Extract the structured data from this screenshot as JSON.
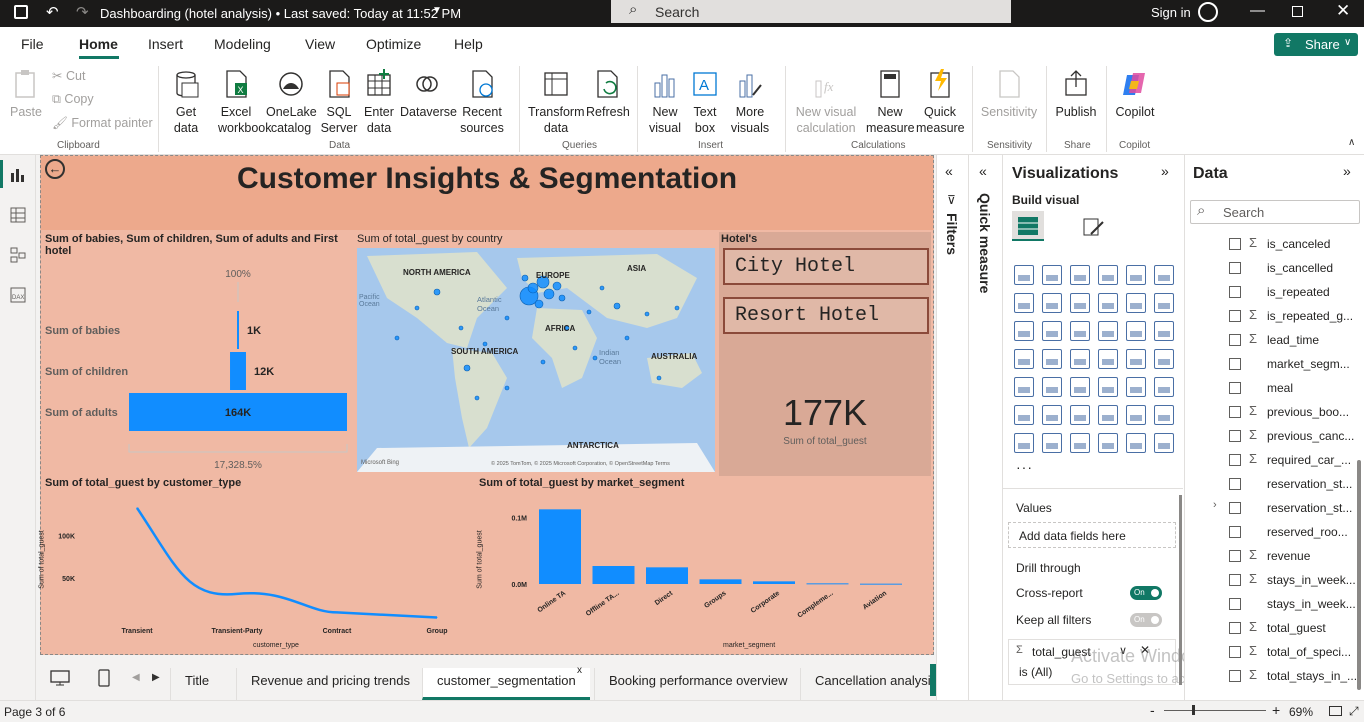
{
  "titlebar": {
    "title": "Dashboarding (hotel analysis) • Last saved: Today at 11:52 PM",
    "search_placeholder": "Search",
    "signin": "Sign in"
  },
  "menu": [
    "File",
    "Home",
    "Insert",
    "Modeling",
    "View",
    "Optimize",
    "Help"
  ],
  "share": "Share",
  "ribbon": {
    "clipboard": {
      "paste": "Paste",
      "cut": "Cut",
      "copy": "Copy",
      "format_painter": "Format painter",
      "group": "Clipboard"
    },
    "data": {
      "get_data": "Get data",
      "excel": "Excel workbook",
      "onelake": "OneLake catalog",
      "sql": "SQL Server",
      "enter": "Enter data",
      "dataverse": "Dataverse",
      "recent": "Recent sources",
      "group": "Data"
    },
    "queries": {
      "transform": "Transform data",
      "refresh": "Refresh",
      "group": "Queries"
    },
    "insert": {
      "new_visual": "New visual",
      "text_box": "Text box",
      "more_visuals": "More visuals",
      "group": "Insert"
    },
    "calculations": {
      "new_visual_calc": "New visual calculation",
      "new_measure": "New measure",
      "quick_measure": "Quick measure",
      "group": "Calculations"
    },
    "sensitivity": {
      "label": "Sensitivity",
      "group": "Sensitivity"
    },
    "share": {
      "publish": "Publish",
      "group": "Share"
    },
    "copilot": {
      "label": "Copilot",
      "group": "Copilot"
    }
  },
  "report": {
    "title": "Customer Insights & Segmentation",
    "funnel": {
      "title": "Sum of babies, Sum of children, Sum of adults and First hotel",
      "top_pct": "100%",
      "bottom_pct": "17,328.5%"
    },
    "map": {
      "title": "Sum of total_guest by country",
      "labels": [
        "NORTH AMERICA",
        "EUROPE",
        "ASIA",
        "Pacific Ocean",
        "Atlantic Ocean",
        "AFRICA",
        "SOUTH AMERICA",
        "Indian Ocean",
        "AUSTRALIA",
        "ANTARCTICA"
      ],
      "bing": "Microsoft Bing",
      "copyright": "© 2025 TomTom, © 2025 Microsoft Corporation, © OpenStreetMap  Terms"
    },
    "slicer": {
      "title": "Hotel's",
      "items": [
        "City Hotel",
        "Resort Hotel"
      ]
    },
    "card": {
      "value": "177K",
      "label": "Sum of total_guest"
    },
    "line": {
      "title": "Sum of total_guest by customer_type",
      "xlabel": "customer_type",
      "ylabel": "Sum of total_guest"
    },
    "bar": {
      "title": "Sum of total_guest by market_segment",
      "xlabel": "market_segment",
      "ylabel": "Sum of total_guest"
    }
  },
  "chart_data": [
    {
      "type": "bar",
      "orientation": "horizontal-funnel",
      "title": "Sum of babies, Sum of children, Sum of adults and First hotel",
      "categories": [
        "Sum of babies",
        "Sum of children",
        "Sum of adults"
      ],
      "values": [
        1000,
        12000,
        164000
      ],
      "labels": [
        "1K",
        "12K",
        "164K"
      ]
    },
    {
      "type": "line",
      "title": "Sum of total_guest by customer_type",
      "categories": [
        "Transient",
        "Transient-Party",
        "Contract",
        "Group"
      ],
      "values": [
        133000,
        31000,
        9000,
        3000
      ],
      "ylabel": "Sum of total_guest",
      "xlabel": "customer_type",
      "yticks": [
        "100K",
        "50K"
      ],
      "ylim": [
        0,
        140000
      ]
    },
    {
      "type": "bar",
      "title": "Sum of total_guest by market_segment",
      "categories": [
        "Online TA",
        "Offline TA...",
        "Direct",
        "Groups",
        "Corporate",
        "Compleme...",
        "Aviation"
      ],
      "values": [
        112000,
        27000,
        25000,
        7000,
        4000,
        1000,
        500
      ],
      "ylabel": "Sum of total_guest",
      "xlabel": "market_segment",
      "yticks": [
        "0.1M",
        "0.0M"
      ],
      "ylim": [
        0,
        120000
      ]
    }
  ],
  "tabs": [
    "Title",
    "Revenue and pricing trends",
    "customer_segmentation",
    "Booking performance overview",
    "Cancellation analysis"
  ],
  "status": {
    "page": "Page 3 of 6",
    "zoom": "69%"
  },
  "filters": "Filters",
  "quick_measure": "Quick measure",
  "viz_pane": {
    "title": "Visualizations",
    "build": "Build visual",
    "values": "Values",
    "add_fields": "Add data fields here",
    "drill": "Drill through",
    "cross_report": "Cross-report",
    "cross_state": "On",
    "keep_filters": "Keep all filters",
    "keep_state": "On",
    "filter_field": "total_guest",
    "filter_value": "is (All)",
    "watermark1": "Activate Windows",
    "watermark2": "Go to Settings to activate Windows."
  },
  "data_pane": {
    "title": "Data",
    "search_placeholder": "Search",
    "fields": [
      {
        "name": "is_canceled",
        "sigma": true
      },
      {
        "name": "is_cancelled",
        "sigma": false
      },
      {
        "name": "is_repeated",
        "sigma": false
      },
      {
        "name": "is_repeated_g...",
        "sigma": true
      },
      {
        "name": "lead_time",
        "sigma": true
      },
      {
        "name": "market_segm...",
        "sigma": false
      },
      {
        "name": "meal",
        "sigma": false
      },
      {
        "name": "previous_boo...",
        "sigma": true
      },
      {
        "name": "previous_canc...",
        "sigma": true
      },
      {
        "name": "required_car_...",
        "sigma": true
      },
      {
        "name": "reservation_st...",
        "sigma": false
      },
      {
        "name": "reservation_st...",
        "sigma": false
      },
      {
        "name": "reserved_roo...",
        "sigma": false
      },
      {
        "name": "revenue",
        "sigma": true
      },
      {
        "name": "stays_in_week...",
        "sigma": true
      },
      {
        "name": "stays_in_week...",
        "sigma": false
      },
      {
        "name": "total_guest",
        "sigma": true
      },
      {
        "name": "total_of_speci...",
        "sigma": true
      },
      {
        "name": "total_stays_in_...",
        "sigma": true
      }
    ]
  }
}
